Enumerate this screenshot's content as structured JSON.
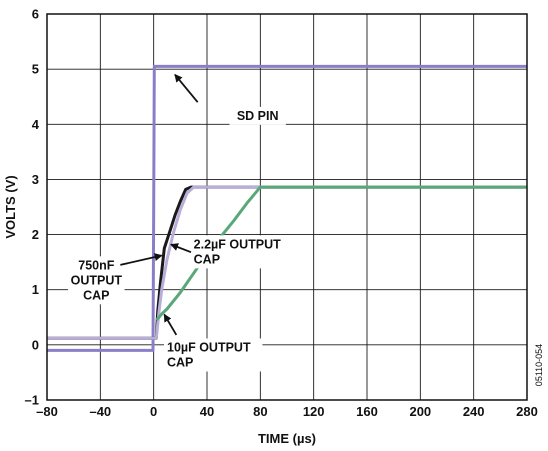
{
  "chart_data": {
    "type": "line",
    "xlabel": "TIME (µs)",
    "ylabel": "VOLTS (V)",
    "xlim": [
      -80,
      280
    ],
    "ylim": [
      -1,
      6
    ],
    "x_ticks": [
      "–80",
      "–40",
      "0",
      "40",
      "80",
      "120",
      "160",
      "200",
      "240",
      "280"
    ],
    "y_ticks": [
      "–1",
      "0",
      "1",
      "2",
      "3",
      "4",
      "5",
      "6"
    ],
    "grid": true,
    "series": [
      {
        "name": "SD PIN",
        "color": "#8b7ec8",
        "x": [
          -80,
          -0.5,
          0,
          0.5,
          280
        ],
        "y": [
          -0.1,
          -0.1,
          2.5,
          5.05,
          5.05
        ]
      },
      {
        "name": "750nF OUTPUT CAP",
        "color": "#1a1a1a",
        "x": [
          -80,
          2,
          3,
          5,
          8,
          12,
          16,
          20,
          24,
          28,
          280
        ],
        "y": [
          0.12,
          0.12,
          0.6,
          1.1,
          1.75,
          2.05,
          2.35,
          2.6,
          2.82,
          2.86,
          2.86
        ]
      },
      {
        "name": "2.2µF OUTPUT CAP",
        "color": "#b8aed8",
        "x": [
          -80,
          2,
          4,
          6,
          10,
          15,
          20,
          25,
          30,
          280
        ],
        "y": [
          0.12,
          0.12,
          0.6,
          1.0,
          1.55,
          2.05,
          2.45,
          2.75,
          2.86,
          2.86
        ]
      },
      {
        "name": "10µF OUTPUT CAP",
        "color": "#5aa87a",
        "x": [
          2,
          4,
          6,
          10,
          20,
          30,
          40,
          50,
          60,
          70,
          80,
          280
        ],
        "y": [
          0.45,
          0.5,
          0.56,
          0.65,
          0.95,
          1.3,
          1.65,
          1.95,
          2.25,
          2.57,
          2.86,
          2.86
        ]
      }
    ],
    "annotations": [
      {
        "label_lines": [
          "SD PIN"
        ],
        "text_x": 78,
        "text_y": 4.08,
        "anchor": "middle",
        "arrow_from": [
          33,
          4.4
        ],
        "arrow_to": [
          16,
          4.9
        ]
      },
      {
        "label_lines": [
          "2.2µF OUTPUT",
          "CAP"
        ],
        "text_x": 30,
        "text_y": 1.75,
        "anchor": "start",
        "arrow_from": [
          28,
          1.68
        ],
        "arrow_to": [
          13,
          1.82
        ]
      },
      {
        "label_lines": [
          "750nF",
          "OUTPUT",
          "CAP"
        ],
        "text_x": -43,
        "text_y": 1.37,
        "anchor": "middle",
        "arrow_from": [
          -25,
          1.45
        ],
        "arrow_to": [
          6,
          1.62
        ]
      },
      {
        "label_lines": [
          "10µF OUTPUT",
          "CAP"
        ],
        "text_x": 10,
        "text_y": -0.12,
        "anchor": "start",
        "arrow_from": [
          17,
          0.18
        ],
        "arrow_to": [
          8,
          0.55
        ]
      }
    ],
    "side_id": "05110-054"
  }
}
